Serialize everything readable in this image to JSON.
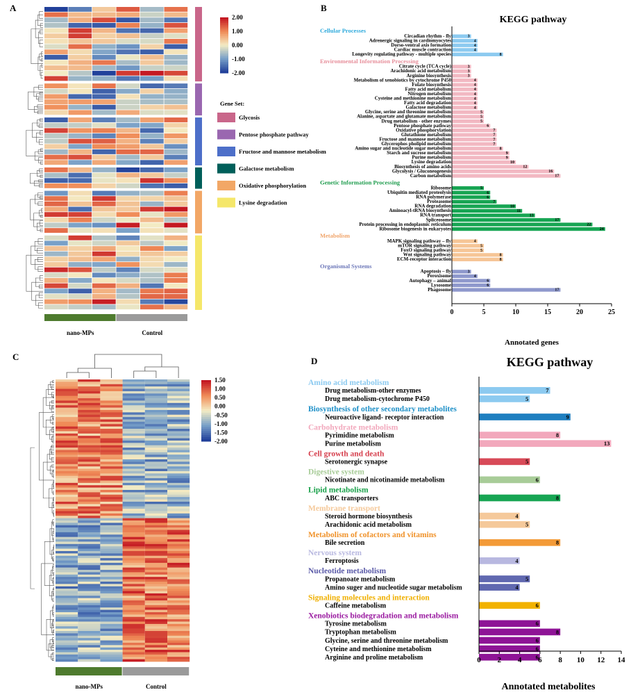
{
  "panels": {
    "A": {
      "label": "A",
      "groups": [
        {
          "name": "nano-MPs",
          "color": "#4e7b2e"
        },
        {
          "name": "Control",
          "color": "#9a9a9a"
        }
      ],
      "scale": {
        "ticks": [
          "2.00",
          "1.00",
          "0.00",
          "-1.00",
          "-2.00"
        ],
        "values": [
          2,
          1,
          0,
          -1,
          -2
        ]
      },
      "legend_title": "Gene Set:",
      "gene_sets": [
        {
          "name": "Glycosis",
          "color": "#c9668a",
          "rows": 14
        },
        {
          "name": "Pentose phosphate pathway",
          "color": "#9a67b0",
          "rows": 6
        },
        {
          "name": "Fructose and mannose metabolism",
          "color": "#4d6fc9",
          "rows": 9
        },
        {
          "name": "Galactose metabolism",
          "color": "#005f5a",
          "rows": 4
        },
        {
          "name": "Oxidative phosphorylation",
          "color": "#f2a766",
          "rows": 8
        },
        {
          "name": "Lysine degradation",
          "color": "#f5e76a",
          "rows": 14
        }
      ]
    },
    "B": {
      "label": "B",
      "chart_data": {
        "type": "bar",
        "title": "KEGG pathway",
        "xlabel": "Annotated genes",
        "xlim": [
          0,
          25
        ],
        "xticks": [
          0,
          5,
          10,
          15,
          20,
          25
        ],
        "categories": [
          {
            "name": "Cellular Processes",
            "color": "#2eaadc",
            "bar_color": "#8ccaf0",
            "items": [
              [
                "Circadian rhythm - fly",
                3
              ],
              [
                "Adrenergic signaling in cardiomyocytes",
                4
              ],
              [
                "Dorso-ventral axis formation",
                4
              ],
              [
                "Cardiac muscle contraction",
                4
              ],
              [
                "Longevity regulating pathway - multiple species",
                8
              ]
            ]
          },
          {
            "name": "Environmental Information Processing",
            "color": "#e7909c",
            "bar_color": "#f2b8c2",
            "items": [
              [
                "Citrate cycle (TCA cycle)",
                3
              ],
              [
                "Arachidonic acid metabolism",
                3
              ],
              [
                "Arginine biosynthesis",
                3
              ],
              [
                "Metabolism of xenobiotics by cytochrome P450",
                4
              ],
              [
                "Folate biosynthesis",
                4
              ],
              [
                "Fatty acid metabolism",
                4
              ],
              [
                "Nitrogen metabolism",
                4
              ],
              [
                "Cysteine and methionine metabolism",
                4
              ],
              [
                "Fatty acid degradation",
                4
              ],
              [
                "Galactose metabolism",
                4
              ],
              [
                "Glycine, serine and threonine metabolism",
                5
              ],
              [
                "Alanine, aspartate and glutamate metabolism",
                5
              ],
              [
                "Drug metabolism - other enzymes",
                5
              ],
              [
                "Pentose phosphate pathway",
                6
              ],
              [
                "Oxidative phosphorylation",
                7
              ],
              [
                "Glutathione metabolism",
                7
              ],
              [
                "Fructose and mannose metabolism",
                7
              ],
              [
                "Glycerophos pholipid metabolism",
                7
              ],
              [
                "Amino sugar and nucleotide sugar metabolism",
                8
              ],
              [
                "Starch and sucrose metabolism",
                9
              ],
              [
                "Purine metabolism",
                9
              ],
              [
                "Lysine degradation",
                10
              ],
              [
                "Biosynthesis of amino acids",
                12
              ],
              [
                "Glycolysis / Gluconeogenesis",
                16
              ],
              [
                "Carbon metabolism",
                17
              ]
            ]
          },
          {
            "name": "Genetic Information Processing",
            "color": "#1a9a4a",
            "bar_color": "#17a553",
            "items": [
              [
                "Ribosome",
                5
              ],
              [
                "Ubiquitin mediated proteolysis",
                6
              ],
              [
                "RNA polymerase",
                6
              ],
              [
                "Proteasome",
                7
              ],
              [
                "RNA degradation",
                10
              ],
              [
                "Aminoacyl-tRNA biosynthesis",
                11
              ],
              [
                "RNA transport",
                13
              ],
              [
                "Spliceosome",
                17
              ],
              [
                "Protein processing in endoplasmic reticulum",
                22
              ],
              [
                "Ribosome biogenesis in eukaryotes",
                24
              ]
            ]
          },
          {
            "name": "Metabolism",
            "color": "#f0a46a",
            "bar_color": "#f6c596",
            "items": [
              [
                "MAPK signaling pathway – fly",
                4
              ],
              [
                "mTOR signaling pathway",
                5
              ],
              [
                "FoxO signaling pathway",
                5
              ],
              [
                "Wnt signaling pathway",
                8
              ],
              [
                "ECM-receptor interaction",
                8
              ]
            ]
          },
          {
            "name": "Organismal Systems",
            "color": "#6b76b8",
            "bar_color": "#8e98cc",
            "items": [
              [
                "Apoptosis – fly",
                3
              ],
              [
                "Peroxisome",
                4
              ],
              [
                "Autophagy – animal",
                6
              ],
              [
                "Lysosome",
                6
              ],
              [
                "Phagosome",
                17
              ]
            ]
          }
        ]
      }
    },
    "C": {
      "label": "C",
      "groups": [
        {
          "name": "nano-MPs",
          "color": "#4e7b2e"
        },
        {
          "name": "Control",
          "color": "#9a9a9a"
        }
      ],
      "scale": {
        "ticks": [
          "1.50",
          "1.00",
          "0.50",
          "0.00",
          "-0.50",
          "-1.00",
          "-1.50",
          "-2.00"
        ],
        "values": [
          1.5,
          1.0,
          0.5,
          0.0,
          -0.5,
          -1.0,
          -1.5,
          -2.0
        ]
      }
    },
    "D": {
      "label": "D",
      "chart_data": {
        "type": "bar",
        "title": "KEGG pathway",
        "xlabel": "Annotated metabolites",
        "xlim": [
          0,
          14
        ],
        "xticks": [
          0,
          2,
          4,
          6,
          8,
          10,
          12,
          14
        ],
        "categories": [
          {
            "name": "Amino acid metabolism",
            "color": "#8ccaf0",
            "bar_color": "#8ccaf0",
            "items": [
              [
                "Drug metabolism-other enzymes",
                7
              ],
              [
                "Drug metabolism-cytochrome P450",
                5
              ]
            ]
          },
          {
            "name": "Biosynthesis of other secondary metabolites",
            "color": "#1e90c8",
            "bar_color": "#1e7fc0",
            "items": [
              [
                "Neuroactive ligand- receptor interaction",
                9
              ]
            ]
          },
          {
            "name": "Carbohydrate metabolism",
            "color": "#f2a8bc",
            "bar_color": "#f2a8bc",
            "items": [
              [
                "Pyrimidine metabolism",
                8
              ],
              [
                "Purine metabolism",
                13
              ]
            ]
          },
          {
            "name": "Cell growth and death",
            "color": "#d6404e",
            "bar_color": "#d84a58",
            "items": [
              [
                "Serotonergic synapse",
                5
              ]
            ]
          },
          {
            "name": "Digestive system",
            "color": "#a8cc98",
            "bar_color": "#a8cc98",
            "items": [
              [
                "Nicotinate and nicotinamide metabolism",
                6
              ]
            ]
          },
          {
            "name": "Lipid metabolism",
            "color": "#17a048",
            "bar_color": "#17a553",
            "items": [
              [
                "ABC transporters",
                8
              ]
            ]
          },
          {
            "name": "Membrane transport",
            "color": "#f5c99a",
            "bar_color": "#f5c99a",
            "items": [
              [
                "Steroid hormone biosynthesis",
                4
              ],
              [
                "Arachidonic acid metabolism",
                5
              ]
            ]
          },
          {
            "name": "Metabolism of cofactors and vitamins",
            "color": "#f0922a",
            "bar_color": "#f39a38",
            "items": [
              [
                "Bile secretion",
                8
              ]
            ]
          },
          {
            "name": "Nervous system",
            "color": "#b8b8e0",
            "bar_color": "#b8b8e0",
            "items": [
              [
                "Ferroptosis",
                4
              ]
            ]
          },
          {
            "name": "Nucleotide metabolism",
            "color": "#5a5aa8",
            "bar_color": "#6068b0",
            "items": [
              [
                "Propanoate metabolism",
                5
              ],
              [
                "Amino suger and nucleotide sugar metabolism",
                4
              ]
            ]
          },
          {
            "name": "Signaling molecules and interaction",
            "color": "#f0b000",
            "bar_color": "#f2b200",
            "items": [
              [
                "Caffeine metabolism",
                6
              ]
            ]
          },
          {
            "name": "Xenobiotics biodegradation and metabolism",
            "color": "#9a1aa0",
            "bar_color": "#8e1496",
            "items": [
              [
                "Tyrosine metabolism",
                6
              ],
              [
                "Tryptophan metabolism",
                8
              ],
              [
                "Glycine, serine and threonine metabolism",
                6
              ],
              [
                "Cyteine and methionine metabolism",
                6
              ],
              [
                "Arginine and proline metabolism",
                6
              ]
            ]
          }
        ]
      }
    }
  }
}
